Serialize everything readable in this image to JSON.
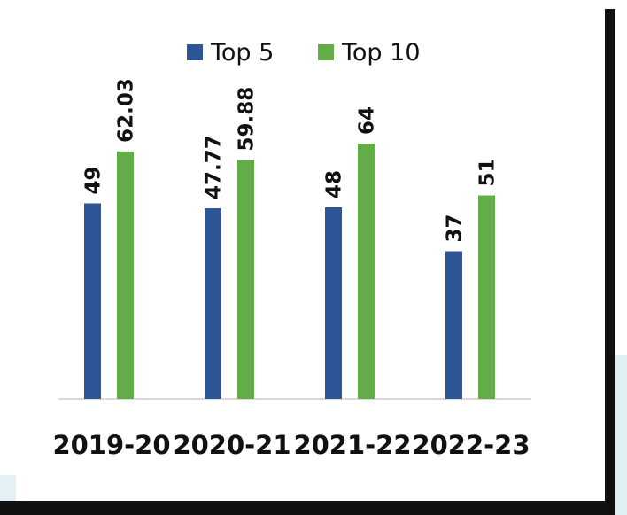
{
  "chart_data": {
    "type": "bar",
    "categories": [
      "2019-20",
      "2020-21",
      "2021-22",
      "2022-23"
    ],
    "series": [
      {
        "name": "Top 5",
        "values": [
          49,
          47.77,
          48,
          37
        ],
        "labels": [
          "49",
          "47.77",
          "48",
          "37"
        ],
        "color": "#2e5597"
      },
      {
        "name": "Top 10",
        "values": [
          62.03,
          59.88,
          64,
          51
        ],
        "labels": [
          "62.03",
          "59.88",
          "64",
          "51"
        ],
        "color": "#63ad48"
      }
    ],
    "ylim": [
      0,
      70
    ],
    "grid": false,
    "legend_position": "top"
  }
}
